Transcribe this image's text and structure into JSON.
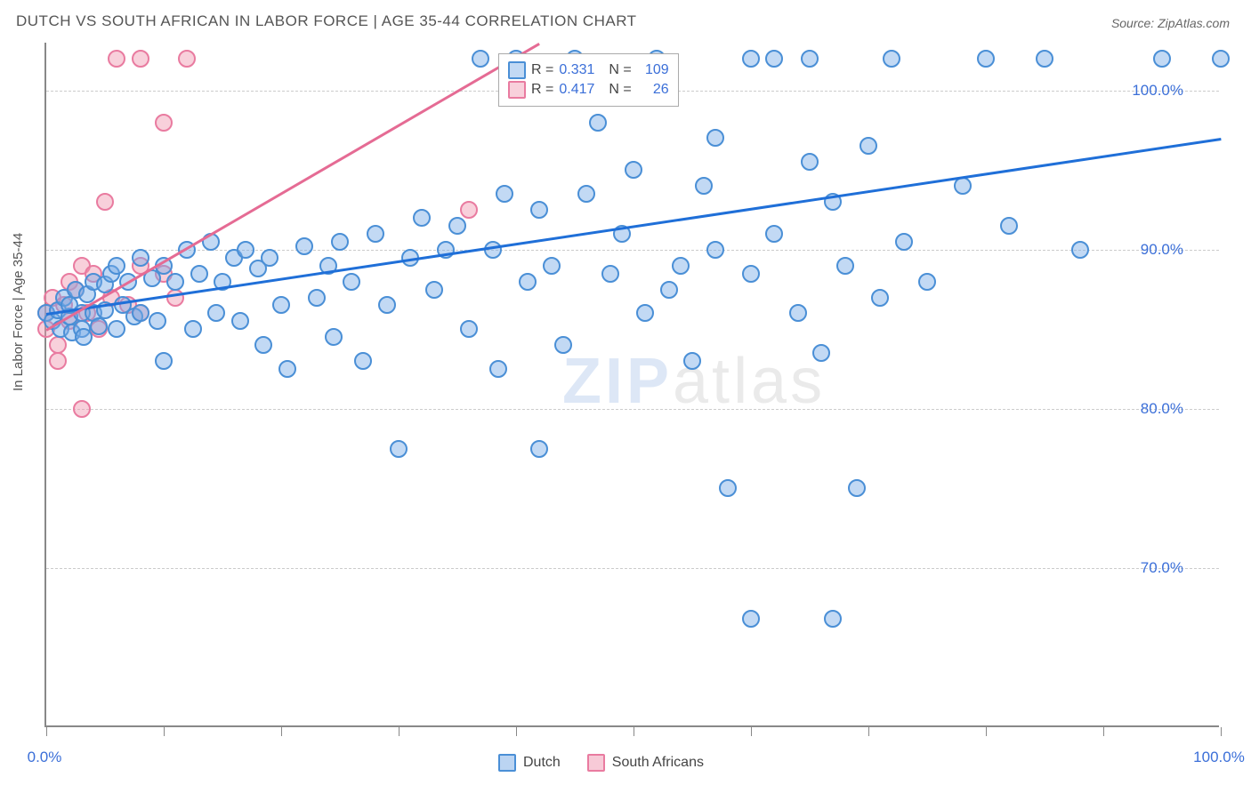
{
  "title": "DUTCH VS SOUTH AFRICAN IN LABOR FORCE | AGE 35-44 CORRELATION CHART",
  "source_prefix": "Source: ",
  "source_name": "ZipAtlas.com",
  "y_axis_label": "In Labor Force | Age 35-44",
  "watermark_zip": "ZIP",
  "watermark_atlas": "atlas",
  "chart": {
    "type": "scatter",
    "background_color": "#ffffff",
    "grid_color": "#cccccc",
    "axis_color": "#888888",
    "x_range": [
      0,
      100
    ],
    "y_range": [
      60,
      103
    ],
    "y_ticks": [
      70,
      80,
      90,
      100
    ],
    "y_tick_labels": [
      "70.0%",
      "80.0%",
      "90.0%",
      "100.0%"
    ],
    "x_ticks": [
      0,
      10,
      20,
      30,
      40,
      50,
      60,
      70,
      80,
      90,
      100
    ],
    "x_tick_labels": [
      "0.0%",
      "",
      "",
      "",
      "",
      "",
      "",
      "",
      "",
      "",
      "100.0%"
    ],
    "point_radius": 10,
    "series": [
      {
        "name": "Dutch",
        "color_fill": "rgba(120,170,230,0.45)",
        "color_stroke": "#4a8fd6",
        "trend_color": "#1f6fd8",
        "R": "0.331",
        "N": "109",
        "trendline": {
          "x1": 0,
          "y1": 86,
          "x2": 100,
          "y2": 97
        },
        "points": [
          [
            0,
            86
          ],
          [
            0.5,
            85.5
          ],
          [
            1,
            86.2
          ],
          [
            1.2,
            85
          ],
          [
            1.5,
            87
          ],
          [
            2,
            85.8
          ],
          [
            2,
            86.5
          ],
          [
            2.2,
            84.8
          ],
          [
            2.5,
            87.5
          ],
          [
            3,
            85
          ],
          [
            3,
            86
          ],
          [
            3.2,
            84.5
          ],
          [
            3.5,
            87.2
          ],
          [
            4,
            88
          ],
          [
            4,
            86
          ],
          [
            4.5,
            85.2
          ],
          [
            5,
            87.8
          ],
          [
            5,
            86.2
          ],
          [
            5.5,
            88.5
          ],
          [
            6,
            85
          ],
          [
            6,
            89
          ],
          [
            6.5,
            86.5
          ],
          [
            7,
            88
          ],
          [
            7.5,
            85.8
          ],
          [
            8,
            89.5
          ],
          [
            8,
            86
          ],
          [
            9,
            88.2
          ],
          [
            9.5,
            85.5
          ],
          [
            10,
            89
          ],
          [
            10,
            83
          ],
          [
            11,
            88
          ],
          [
            12,
            90
          ],
          [
            12.5,
            85
          ],
          [
            13,
            88.5
          ],
          [
            14,
            90.5
          ],
          [
            14.5,
            86
          ],
          [
            15,
            88
          ],
          [
            16,
            89.5
          ],
          [
            16.5,
            85.5
          ],
          [
            17,
            90
          ],
          [
            18,
            88.8
          ],
          [
            18.5,
            84
          ],
          [
            19,
            89.5
          ],
          [
            20,
            86.5
          ],
          [
            20.5,
            82.5
          ],
          [
            22,
            90.2
          ],
          [
            23,
            87
          ],
          [
            24,
            89
          ],
          [
            24.5,
            84.5
          ],
          [
            25,
            90.5
          ],
          [
            26,
            88
          ],
          [
            27,
            83
          ],
          [
            28,
            91
          ],
          [
            29,
            86.5
          ],
          [
            30,
            77.5
          ],
          [
            31,
            89.5
          ],
          [
            32,
            92
          ],
          [
            33,
            87.5
          ],
          [
            34,
            90
          ],
          [
            35,
            91.5
          ],
          [
            36,
            85
          ],
          [
            37,
            102
          ],
          [
            38,
            90
          ],
          [
            38.5,
            82.5
          ],
          [
            39,
            93.5
          ],
          [
            40,
            102
          ],
          [
            41,
            88
          ],
          [
            42,
            92.5
          ],
          [
            42,
            77.5
          ],
          [
            43,
            89
          ],
          [
            44,
            84
          ],
          [
            45,
            102
          ],
          [
            46,
            93.5
          ],
          [
            47,
            98
          ],
          [
            48,
            88.5
          ],
          [
            49,
            91
          ],
          [
            50,
            95
          ],
          [
            51,
            86
          ],
          [
            52,
            102
          ],
          [
            53,
            87.5
          ],
          [
            54,
            89
          ],
          [
            55,
            83
          ],
          [
            56,
            94
          ],
          [
            57,
            90
          ],
          [
            58,
            75
          ],
          [
            57,
            97
          ],
          [
            60,
            88.5
          ],
          [
            60,
            102
          ],
          [
            62,
            91
          ],
          [
            62,
            102
          ],
          [
            64,
            86
          ],
          [
            65,
            95.5
          ],
          [
            65,
            102
          ],
          [
            66,
            83.5
          ],
          [
            67,
            93
          ],
          [
            68,
            89
          ],
          [
            69,
            75
          ],
          [
            70,
            96.5
          ],
          [
            71,
            87
          ],
          [
            72,
            102
          ],
          [
            73,
            90.5
          ],
          [
            60,
            66.8
          ],
          [
            75,
            88
          ],
          [
            67,
            66.8
          ],
          [
            78,
            94
          ],
          [
            80,
            102
          ],
          [
            82,
            91.5
          ],
          [
            85,
            102
          ],
          [
            88,
            90
          ],
          [
            95,
            102
          ],
          [
            100,
            102
          ]
        ]
      },
      {
        "name": "South Africans",
        "color_fill": "rgba(240,150,175,0.45)",
        "color_stroke": "#e97ba0",
        "trend_color": "#e56b94",
        "R": "0.417",
        "N": "26",
        "trendline": {
          "x1": 0,
          "y1": 85,
          "x2": 42,
          "y2": 103
        },
        "points": [
          [
            0,
            86
          ],
          [
            0,
            85
          ],
          [
            0.5,
            87
          ],
          [
            1,
            84
          ],
          [
            1,
            83
          ],
          [
            1.5,
            86.5
          ],
          [
            2,
            88
          ],
          [
            2,
            85.5
          ],
          [
            2.5,
            87.5
          ],
          [
            3,
            89
          ],
          [
            3,
            80
          ],
          [
            3.5,
            86
          ],
          [
            4,
            88.5
          ],
          [
            6,
            102
          ],
          [
            4.5,
            85
          ],
          [
            8,
            102
          ],
          [
            5.5,
            87
          ],
          [
            10,
            98
          ],
          [
            12,
            102
          ],
          [
            7,
            86.5
          ],
          [
            5,
            93
          ],
          [
            8,
            89
          ],
          [
            8,
            86
          ],
          [
            10,
            88.5
          ],
          [
            36,
            92.5
          ],
          [
            11,
            87
          ]
        ]
      }
    ]
  },
  "stats_legend": {
    "r_label": "R =",
    "n_label": "N ="
  },
  "bottom_legend": {
    "items": [
      "Dutch",
      "South Africans"
    ]
  }
}
